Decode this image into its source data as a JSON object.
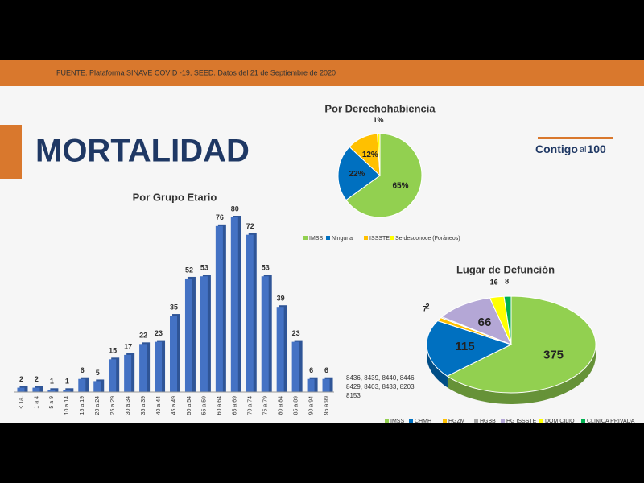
{
  "header": {
    "source": "FUENTE. Plataforma SINAVE COVID -19, SEED. Datos del 21 de Septiembre de 2020"
  },
  "slide": {
    "title": "MORTALIDAD"
  },
  "logo": {
    "parts": [
      "Contigo",
      "al",
      "100"
    ]
  },
  "chart_data": [
    {
      "type": "bar",
      "title": "Por Grupo Etario",
      "categories": [
        "< 1a.",
        "1 a 4",
        "5 a 9",
        "10 a 14",
        "15 a 19",
        "20 a 24",
        "25 a 29",
        "30 a 34",
        "35 a 39",
        "40 a 44",
        "45 a 49",
        "50 a 54",
        "55 a 59",
        "60 a 64",
        "65 a 69",
        "70 a 74",
        "75 a 79",
        "80 a 84",
        "85 a 89",
        "90 a 94",
        "95 a 99"
      ],
      "values": [
        2,
        2,
        1,
        1,
        6,
        5,
        15,
        17,
        22,
        23,
        35,
        52,
        53,
        76,
        80,
        72,
        53,
        39,
        23,
        6,
        6
      ],
      "color": "#4472c4"
    },
    {
      "type": "pie",
      "title": "Por Derechohabiencia",
      "categories": [
        "IMSS",
        "Ninguna",
        "ISSSTE",
        "Se desconoce (Foráneos)"
      ],
      "values": [
        65,
        22,
        12,
        1
      ],
      "value_labels": [
        "65%",
        "22%",
        "12%",
        "1%"
      ],
      "colors": [
        "#92d050",
        "#0070c0",
        "#ffc000",
        "#ffff00"
      ]
    },
    {
      "type": "pie3d",
      "title": "Lugar de Defunción",
      "categories": [
        "IMSS",
        "CHMH",
        "HGZM",
        "HGBB",
        "HG ISSSTE",
        "DOMICILIO",
        "CLINICA PRIVADA"
      ],
      "values": [
        375,
        115,
        7,
        2,
        66,
        16,
        8
      ],
      "colors": [
        "#92d050",
        "#0070c0",
        "#ffc000",
        "#a5a5a5",
        "#b4a7d6",
        "#ffff00",
        "#00b050"
      ],
      "annotation": "8436, 8439, 8440, 8446, 8429, 8403, 8433, 8203, 8153"
    }
  ]
}
